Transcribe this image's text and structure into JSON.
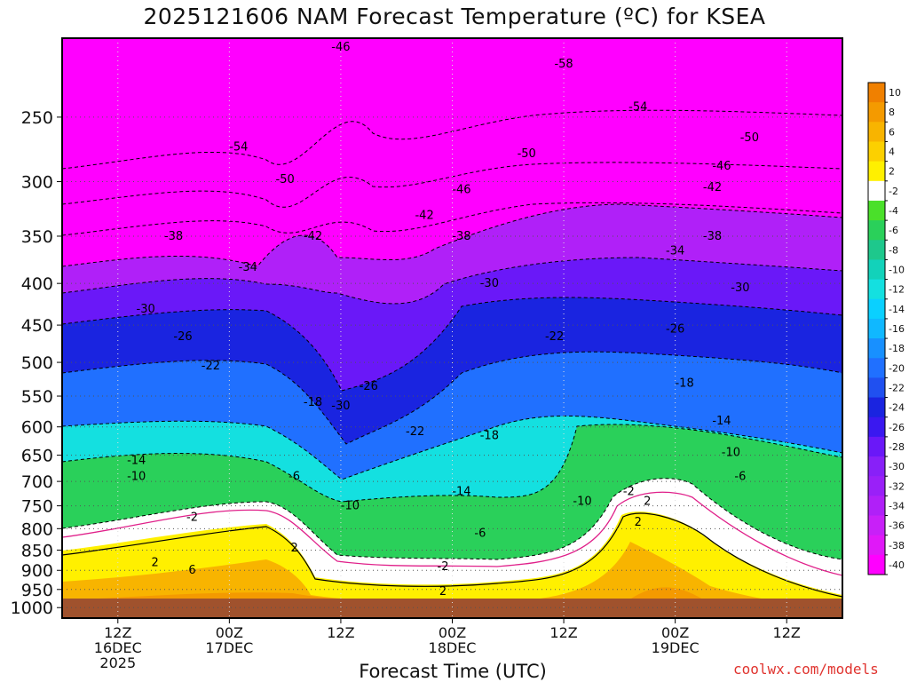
{
  "title": "2025121606 NAM Forecast Temperature (ºC) for KSEA",
  "xlabel": "Forecast Time (UTC)",
  "credit": "coolwx.com/models",
  "chart_data": {
    "type": "heatmap",
    "title": "2025121606 NAM Forecast Temperature (ºC) for KSEA",
    "xlabel": "Forecast Time (UTC)",
    "ylabel": "",
    "y_scale": "pressure (log), inverted",
    "y_ticks": [
      250,
      300,
      350,
      400,
      450,
      500,
      550,
      600,
      650,
      700,
      750,
      800,
      850,
      900,
      950,
      1000
    ],
    "x_ticks": [
      {
        "hour": 6,
        "label": [
          "12Z",
          "16DEC",
          "2025"
        ]
      },
      {
        "hour": 18,
        "label": [
          "00Z",
          "17DEC"
        ]
      },
      {
        "hour": 30,
        "label": [
          "12Z"
        ]
      },
      {
        "hour": 42,
        "label": [
          "00Z",
          "18DEC"
        ]
      },
      {
        "hour": 54,
        "label": [
          "12Z"
        ]
      },
      {
        "hour": 66,
        "label": [
          "00Z",
          "19DEC"
        ]
      },
      {
        "hour": 78,
        "label": [
          "12Z"
        ]
      }
    ],
    "grid": true,
    "colorbar": {
      "labels": [
        "10",
        "8",
        "6",
        "4",
        "2",
        "-2",
        "-4",
        "-6",
        "-8",
        "-10",
        "-12",
        "-14",
        "-16",
        "-18",
        "-20",
        "-22",
        "-24",
        "-26",
        "-28",
        "-30",
        "-32",
        "-34",
        "-36",
        "-38",
        "-40"
      ],
      "colors": [
        "#f08000",
        "#f49a00",
        "#f8b400",
        "#fcd000",
        "#fff000",
        "#ffffff",
        "#4ae02a",
        "#2ad05a",
        "#1ec88c",
        "#12d2ba",
        "#14e0e0",
        "#0ad0ff",
        "#10b8ff",
        "#1890ff",
        "#2070ff",
        "#2050f0",
        "#1a24e0",
        "#3a18f0",
        "#6a18f8",
        "#8820f8",
        "#9a20f8",
        "#b020f8",
        "#c820f8",
        "#e018f8",
        "#ff00ff"
      ]
    },
    "contour_labels": [
      {
        "text": "-46",
        "hour": 30,
        "pressure": 205
      },
      {
        "text": "-58",
        "hour": 54,
        "pressure": 215
      },
      {
        "text": "-54",
        "hour": 62,
        "pressure": 243
      },
      {
        "text": "-54",
        "hour": 19,
        "pressure": 272
      },
      {
        "text": "-50",
        "hour": 50,
        "pressure": 277
      },
      {
        "text": "-50",
        "hour": 74,
        "pressure": 265
      },
      {
        "text": "-46",
        "hour": 71,
        "pressure": 287
      },
      {
        "text": "-50",
        "hour": 24,
        "pressure": 298
      },
      {
        "text": "-42",
        "hour": 70,
        "pressure": 305
      },
      {
        "text": "-46",
        "hour": 43,
        "pressure": 307
      },
      {
        "text": "-42",
        "hour": 39,
        "pressure": 330
      },
      {
        "text": "-38",
        "hour": 12,
        "pressure": 350
      },
      {
        "text": "-42",
        "hour": 27,
        "pressure": 350
      },
      {
        "text": "-38",
        "hour": 43,
        "pressure": 350
      },
      {
        "text": "-38",
        "hour": 70,
        "pressure": 350
      },
      {
        "text": "-34",
        "hour": 66,
        "pressure": 365
      },
      {
        "text": "-34",
        "hour": 20,
        "pressure": 382
      },
      {
        "text": "-30",
        "hour": 46,
        "pressure": 400
      },
      {
        "text": "-30",
        "hour": 73,
        "pressure": 405
      },
      {
        "text": "-30",
        "hour": 9,
        "pressure": 430
      },
      {
        "text": "-26",
        "hour": 66,
        "pressure": 455
      },
      {
        "text": "-22",
        "hour": 53,
        "pressure": 465
      },
      {
        "text": "-26",
        "hour": 13,
        "pressure": 465
      },
      {
        "text": "-22",
        "hour": 16,
        "pressure": 505
      },
      {
        "text": "-18",
        "hour": 67,
        "pressure": 530
      },
      {
        "text": "-26",
        "hour": 33,
        "pressure": 535
      },
      {
        "text": "-18",
        "hour": 27,
        "pressure": 560
      },
      {
        "text": "-30",
        "hour": 30,
        "pressure": 565
      },
      {
        "text": "-14",
        "hour": 71,
        "pressure": 590
      },
      {
        "text": "-22",
        "hour": 38,
        "pressure": 608
      },
      {
        "text": "-18",
        "hour": 46,
        "pressure": 615
      },
      {
        "text": "-10",
        "hour": 72,
        "pressure": 645
      },
      {
        "text": "-14",
        "hour": 8,
        "pressure": 660
      },
      {
        "text": "-6",
        "hour": 73,
        "pressure": 690
      },
      {
        "text": "-10",
        "hour": 8,
        "pressure": 690
      },
      {
        "text": "-6",
        "hour": 25,
        "pressure": 690
      },
      {
        "text": "-2",
        "hour": 61,
        "pressure": 720
      },
      {
        "text": "-14",
        "hour": 43,
        "pressure": 720
      },
      {
        "text": "-10",
        "hour": 56,
        "pressure": 740
      },
      {
        "text": "-10",
        "hour": 31,
        "pressure": 750
      },
      {
        "text": "-2",
        "hour": 14,
        "pressure": 775
      },
      {
        "text": "2",
        "hour": 62,
        "pressure": 785
      },
      {
        "text": "-6",
        "hour": 45,
        "pressure": 810
      },
      {
        "text": "2",
        "hour": 63,
        "pressure": 740
      },
      {
        "text": "2",
        "hour": 25,
        "pressure": 845
      },
      {
        "text": "2",
        "hour": 10,
        "pressure": 880
      },
      {
        "text": "-2",
        "hour": 41,
        "pressure": 890
      },
      {
        "text": "6",
        "hour": 14,
        "pressure": 900
      },
      {
        "text": "2",
        "hour": 41,
        "pressure": 955
      }
    ]
  }
}
